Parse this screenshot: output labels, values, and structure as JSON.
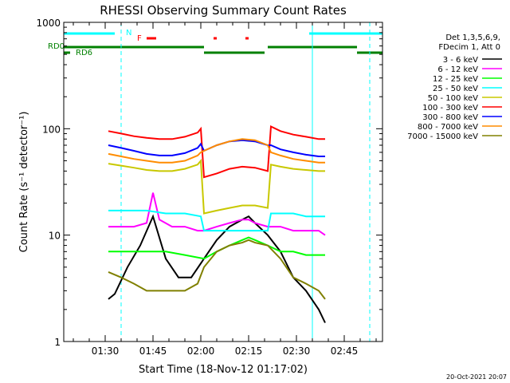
{
  "chart_data": {
    "type": "line",
    "title": "RHESSI Observing Summary Count Rates",
    "xlabel": "Start Time (18-Nov-12 01:17:02)",
    "ylabel": "Count Rate (s⁻¹ detector⁻¹)",
    "y_scale": "log",
    "ylim": [
      1,
      1000
    ],
    "xlim_minutes": [
      0,
      100
    ],
    "x_ticks": [
      {
        "label": "01:30",
        "minute": 13
      },
      {
        "label": "01:45",
        "minute": 28
      },
      {
        "label": "02:00",
        "minute": 43
      },
      {
        "label": "02:15",
        "minute": 58
      },
      {
        "label": "02:30",
        "minute": 73
      },
      {
        "label": "02:45",
        "minute": 88
      }
    ],
    "y_ticks": [
      {
        "label": "1",
        "value": 1
      },
      {
        "label": "10",
        "value": 10
      },
      {
        "label": "100",
        "value": 100
      },
      {
        "label": "1000",
        "value": 1000
      }
    ],
    "legend_header": [
      "Det 1,3,5,6,9,",
      "FDecim 1, Att 0"
    ],
    "legend_placement": "right",
    "series": [
      {
        "name": "3 - 6 keV",
        "color": "#000000",
        "x": [
          14,
          16,
          20,
          24,
          28,
          32,
          36,
          40,
          44,
          48,
          52,
          56,
          58,
          60,
          64,
          68,
          72,
          76,
          80,
          82
        ],
        "y": [
          2.5,
          2.8,
          5,
          8,
          15,
          6,
          4,
          4,
          6,
          9,
          12,
          14,
          15,
          13,
          10,
          7,
          4,
          3,
          2,
          1.5
        ]
      },
      {
        "name": "6 - 12 keV",
        "color": "#ff00ff",
        "x": [
          14,
          18,
          22,
          26,
          28,
          30,
          34,
          38,
          42,
          44,
          48,
          52,
          56,
          58,
          60,
          64,
          68,
          72,
          76,
          80,
          82
        ],
        "y": [
          12,
          12,
          12,
          13,
          25,
          14,
          12,
          12,
          11,
          11,
          12,
          13,
          14,
          14,
          13,
          12,
          12,
          11,
          11,
          11,
          10
        ]
      },
      {
        "name": "12 - 25 keV",
        "color": "#00ff00",
        "x": [
          14,
          20,
          26,
          32,
          38,
          44,
          48,
          52,
          56,
          58,
          60,
          64,
          68,
          72,
          76,
          82
        ],
        "y": [
          7,
          7,
          7,
          7,
          6.5,
          6,
          7,
          8,
          9,
          9.5,
          9,
          8,
          7,
          7,
          6.5,
          6.5
        ]
      },
      {
        "name": "25 - 50 keV",
        "color": "#00ffff",
        "x": [
          14,
          20,
          26,
          32,
          38,
          43,
          44,
          48,
          52,
          56,
          58,
          60,
          64,
          65,
          68,
          72,
          76,
          82
        ],
        "y": [
          17,
          17,
          17,
          16,
          16,
          15,
          11,
          11,
          11,
          11,
          11,
          11,
          11,
          16,
          16,
          16,
          15,
          15
        ]
      },
      {
        "name": "50 - 100 keV",
        "color": "#c8c800",
        "x": [
          14,
          18,
          22,
          26,
          30,
          34,
          38,
          42,
          43,
          44,
          48,
          52,
          56,
          60,
          64,
          65,
          68,
          72,
          76,
          80,
          82
        ],
        "y": [
          47,
          45,
          43,
          41,
          40,
          40,
          42,
          46,
          50,
          16,
          17,
          18,
          19,
          19,
          18,
          46,
          44,
          42,
          41,
          40,
          40
        ]
      },
      {
        "name": "100 - 300 keV",
        "color": "#ff0000",
        "x": [
          14,
          18,
          22,
          26,
          30,
          34,
          38,
          42,
          43,
          44,
          48,
          52,
          56,
          60,
          64,
          65,
          68,
          72,
          76,
          80,
          82
        ],
        "y": [
          95,
          90,
          85,
          82,
          80,
          80,
          84,
          92,
          100,
          35,
          38,
          42,
          44,
          43,
          40,
          105,
          95,
          88,
          84,
          80,
          80
        ]
      },
      {
        "name": "300 - 800 keV",
        "color": "#0000ff",
        "x": [
          14,
          18,
          22,
          26,
          30,
          34,
          38,
          42,
          43,
          44,
          48,
          52,
          56,
          60,
          64,
          65,
          68,
          72,
          76,
          80,
          82
        ],
        "y": [
          70,
          66,
          62,
          58,
          56,
          56,
          59,
          66,
          72,
          62,
          70,
          76,
          78,
          76,
          70,
          70,
          64,
          60,
          57,
          55,
          55
        ]
      },
      {
        "name": "800 - 7000 keV",
        "color": "#ff8c00",
        "x": [
          14,
          18,
          22,
          26,
          30,
          34,
          38,
          42,
          43,
          44,
          48,
          52,
          56,
          60,
          64,
          65,
          68,
          72,
          76,
          80,
          82
        ],
        "y": [
          58,
          55,
          52,
          50,
          48,
          48,
          50,
          56,
          60,
          62,
          70,
          76,
          80,
          78,
          70,
          60,
          56,
          52,
          50,
          48,
          48
        ]
      },
      {
        "name": "7000 - 15000 keV",
        "color": "#808000",
        "x": [
          14,
          18,
          22,
          26,
          30,
          34,
          38,
          42,
          44,
          48,
          52,
          56,
          58,
          60,
          64,
          68,
          72,
          76,
          80,
          82
        ],
        "y": [
          4.5,
          4,
          3.5,
          3,
          3,
          3,
          3,
          3.5,
          5,
          7,
          8,
          8.5,
          9,
          8.5,
          8,
          6,
          4,
          3.5,
          3,
          2.5
        ]
      }
    ],
    "markers": [
      {
        "text": "N",
        "color": "#00ffff"
      },
      {
        "text": "F",
        "color": "#ff0000"
      },
      {
        "text": "RD0",
        "color": "#008000"
      },
      {
        "text": "RD6",
        "color": "#008000"
      }
    ],
    "flags": {
      "N_intervals": [
        [
          0,
          16
        ],
        [
          77,
          100
        ]
      ],
      "F_intervals": [
        [
          26,
          29
        ],
        [
          47,
          48
        ],
        [
          57,
          58
        ]
      ],
      "RD0_intervals": [
        [
          0,
          44
        ],
        [
          64,
          92
        ]
      ],
      "RD6_intervals": [
        [
          0,
          2
        ],
        [
          44,
          63
        ],
        [
          92,
          100
        ]
      ]
    },
    "vertical_lines": [
      {
        "minute": 0,
        "style": "solid",
        "color": "#00ffff"
      },
      {
        "minute": 18,
        "style": "dashed",
        "color": "#00ffff"
      },
      {
        "minute": 78,
        "style": "solid",
        "color": "#00ffff"
      },
      {
        "minute": 96,
        "style": "dashed",
        "color": "#00ffff"
      }
    ]
  },
  "footer": {
    "date_stamp": "20-Oct-2021 20:07"
  }
}
